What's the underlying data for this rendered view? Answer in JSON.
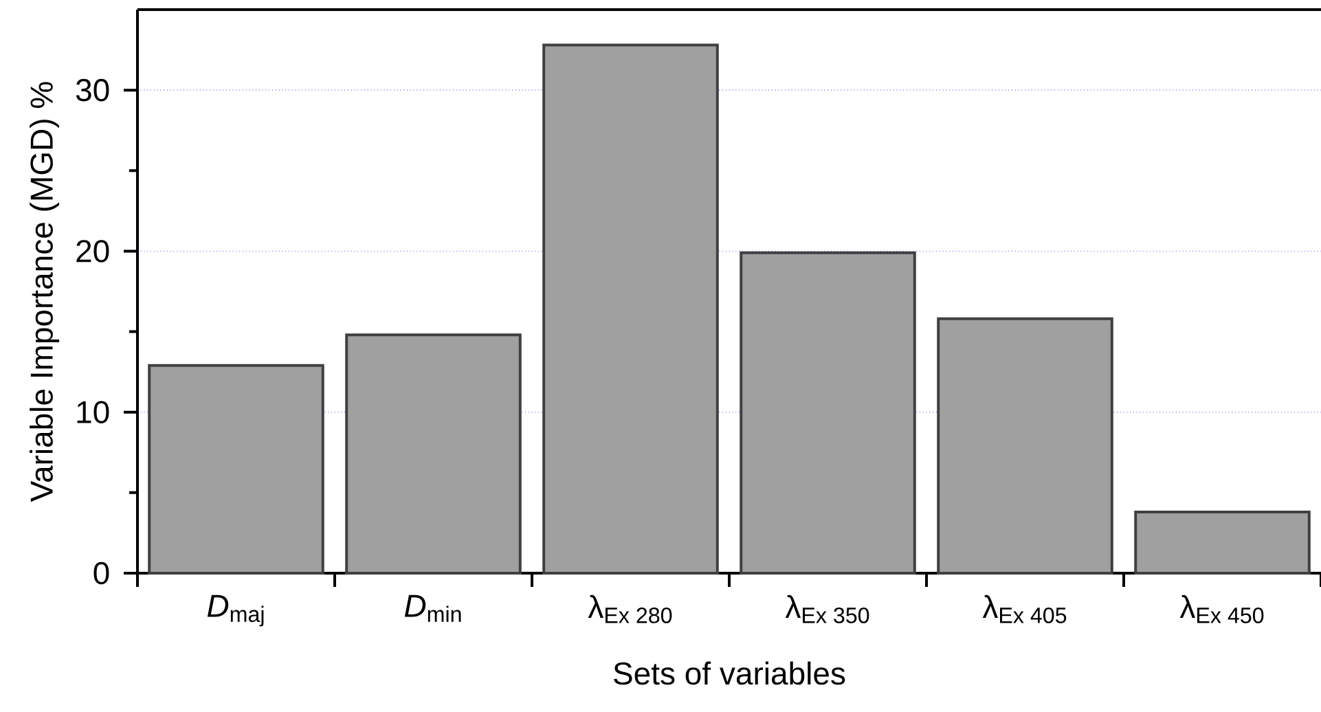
{
  "chart_data": {
    "type": "bar",
    "xlabel": "Sets of variables",
    "ylabel": "Variable Importance (MGD) %",
    "categories": [
      "*D*$_{maj}$",
      "*D*$_{min}$",
      "λ$_{Ex 280}$",
      "λ$_{Ex 350}$",
      "λ$_{Ex 405}$",
      "λ$_{Ex 450}$"
    ],
    "values": [
      12.9,
      14.8,
      32.8,
      19.9,
      15.8,
      3.8
    ],
    "color": "#a0a0a0",
    "ylim": [
      0,
      35
    ],
    "yticks": [
      0,
      10,
      20,
      30
    ],
    "grid": "y"
  }
}
